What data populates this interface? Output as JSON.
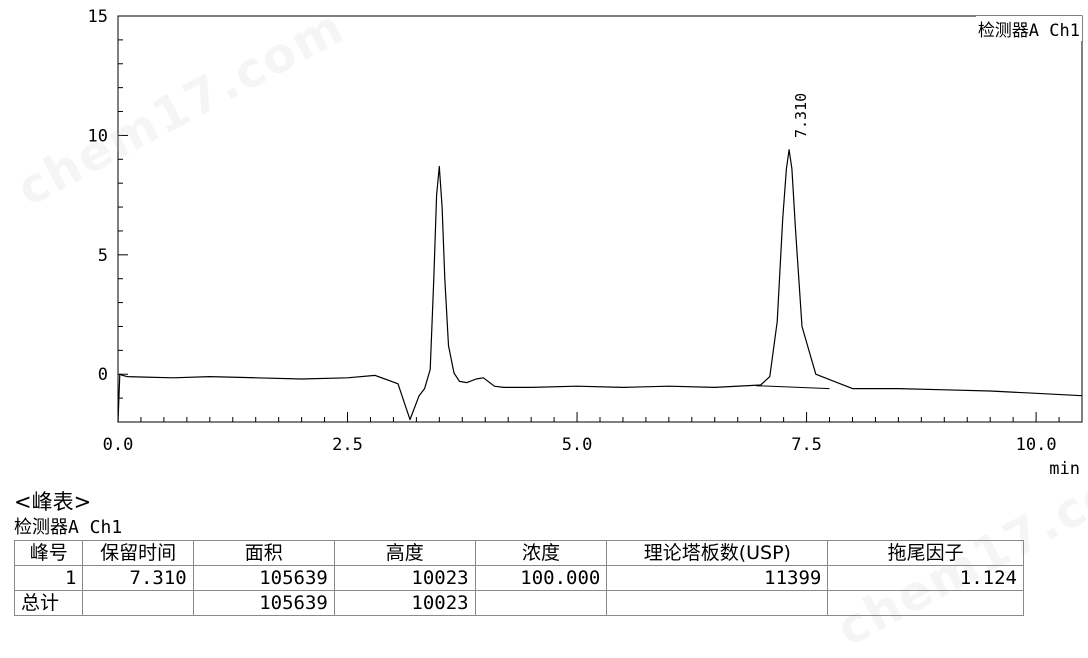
{
  "chart_data": {
    "type": "line",
    "xlabel": "min",
    "detector_label": "检测器A Ch1",
    "xlim": [
      0.0,
      10.5
    ],
    "ylim": [
      -2,
      15
    ],
    "x_ticks": [
      "0.0",
      "2.5",
      "5.0",
      "7.5",
      "10.0"
    ],
    "y_ticks": [
      "15",
      "10",
      "5",
      "0"
    ],
    "series": [
      {
        "x": [
          0.0,
          0.02,
          0.05,
          0.1,
          0.3,
          0.6,
          1.0,
          1.5,
          2.0,
          2.5,
          2.8,
          3.05,
          3.12,
          3.18,
          3.22,
          3.28,
          3.34,
          3.4,
          3.44,
          3.47,
          3.5,
          3.53,
          3.56,
          3.6,
          3.66,
          3.72,
          3.8,
          3.9,
          3.98,
          4.1,
          4.2,
          4.5,
          5.0,
          5.5,
          6.0,
          6.5,
          7.0,
          7.1,
          7.18,
          7.24,
          7.28,
          7.31,
          7.34,
          7.38,
          7.45,
          7.6,
          8.0,
          8.5,
          9.0,
          9.5,
          10.0,
          10.5
        ],
        "y": [
          -2.0,
          0.0,
          -0.05,
          -0.1,
          -0.12,
          -0.15,
          -0.1,
          -0.15,
          -0.2,
          -0.15,
          -0.05,
          -0.4,
          -1.2,
          -1.9,
          -1.5,
          -0.9,
          -0.6,
          0.2,
          4.0,
          7.5,
          8.7,
          7.0,
          4.0,
          1.2,
          0.05,
          -0.3,
          -0.35,
          -0.2,
          -0.15,
          -0.5,
          -0.55,
          -0.55,
          -0.5,
          -0.55,
          -0.5,
          -0.55,
          -0.45,
          -0.1,
          2.2,
          6.5,
          8.6,
          9.4,
          8.6,
          6.0,
          2.0,
          0.0,
          -0.6,
          -0.6,
          -0.65,
          -0.7,
          -0.8,
          -0.9
        ]
      }
    ],
    "peak_annotations": [
      {
        "x": 7.31,
        "label": "7.310"
      }
    ]
  },
  "peak_table": {
    "title": "<峰表>",
    "detector": "检测器A Ch1",
    "headers": [
      "峰号",
      "保留时间",
      "面积",
      "高度",
      "浓度",
      "理论塔板数(USP)",
      "拖尾因子"
    ],
    "row": {
      "no": "1",
      "rt": "7.310",
      "area": "105639",
      "height": "10023",
      "conc": "100.000",
      "plates": "11399",
      "tailing": "1.124"
    },
    "total": {
      "label": "总计",
      "area": "105639",
      "height": "10023"
    }
  },
  "watermarks": [
    "chem17.com",
    "chem17.com"
  ]
}
